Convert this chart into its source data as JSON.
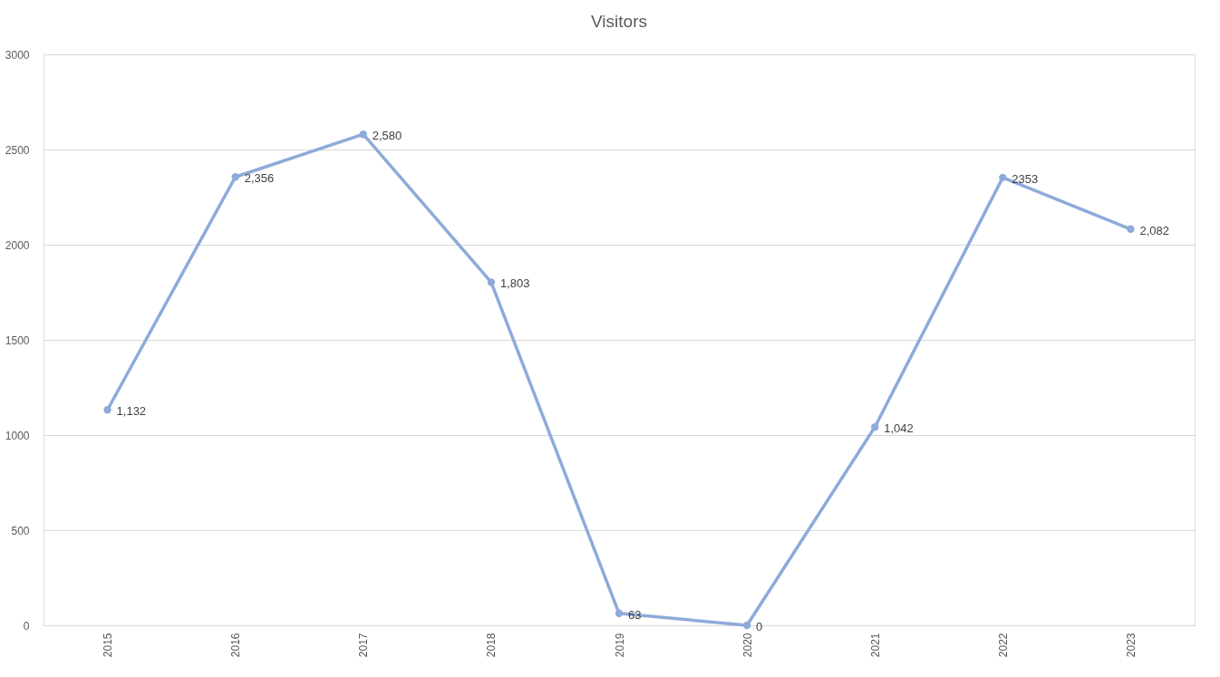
{
  "chart_data": {
    "type": "line",
    "title": "Visitors",
    "categories": [
      "2015",
      "2016",
      "2017",
      "2018",
      "2019",
      "2020",
      "2021",
      "2022",
      "2023"
    ],
    "series": [
      {
        "color": "#8eaad9",
        "values": [
          1132,
          2356,
          2580,
          1803,
          63,
          0,
          1042,
          2353,
          2082
        ],
        "value_labels": [
          "1,132",
          "2,356",
          "2,580",
          "1,803",
          "63",
          "0",
          "1,042",
          "2353",
          "2,082"
        ]
      }
    ],
    "ylim": [
      0,
      3000
    ],
    "yticks": [
      0,
      500,
      1000,
      1500,
      2000,
      2500,
      3000
    ],
    "grid": "y",
    "marker": "circle",
    "line_style": "solid"
  }
}
